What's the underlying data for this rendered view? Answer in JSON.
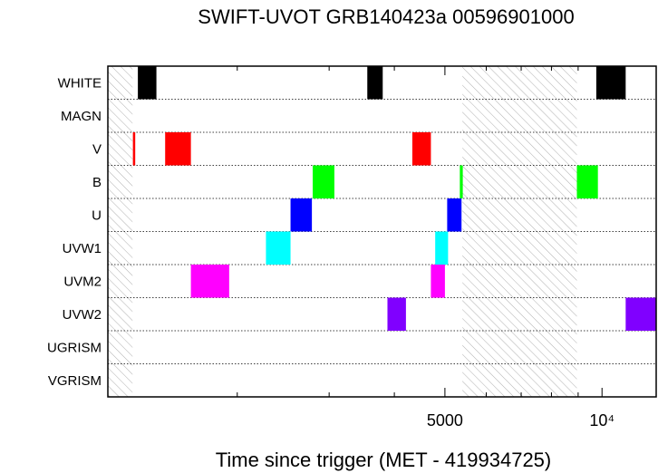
{
  "chart_data": {
    "type": "timeline",
    "title": "SWIFT-UVOT GRB140423a 00596901000",
    "xlabel": "Time since trigger (MET - 419934725)",
    "ylabel": "",
    "x_scale": "log",
    "xlim": [
      1130,
      12700
    ],
    "x_ticks": [
      {
        "value": 5000,
        "label": "5000"
      },
      {
        "value": 10000,
        "label": "10⁴"
      }
    ],
    "filters": [
      "WHITE",
      "MAGN",
      "V",
      "B",
      "U",
      "UVW1",
      "UVM2",
      "UVW2",
      "UGRISM",
      "VGRISM"
    ],
    "gaps": [
      [
        1130,
        1260
      ],
      [
        5400,
        8950
      ]
    ],
    "colors": {
      "WHITE": "#000000",
      "V": "#ff0000",
      "B": "#00ff00",
      "U": "#0000ff",
      "UVW1": "#00ffff",
      "UVM2": "#ff00ff",
      "UVW2": "#8000ff",
      "gap_hatch": "#b0b0b0"
    },
    "exposures": [
      {
        "filter": "WHITE",
        "start": 1290,
        "end": 1400
      },
      {
        "filter": "WHITE",
        "start": 3550,
        "end": 3800
      },
      {
        "filter": "WHITE",
        "start": 9750,
        "end": 11100
      },
      {
        "filter": "V",
        "start": 1262,
        "end": 1275
      },
      {
        "filter": "V",
        "start": 1455,
        "end": 1630
      },
      {
        "filter": "V",
        "start": 4330,
        "end": 4700
      },
      {
        "filter": "B",
        "start": 2790,
        "end": 3070
      },
      {
        "filter": "B",
        "start": 5340,
        "end": 5410
      },
      {
        "filter": "B",
        "start": 8950,
        "end": 9820
      },
      {
        "filter": "U",
        "start": 2530,
        "end": 2780
      },
      {
        "filter": "U",
        "start": 5050,
        "end": 5380
      },
      {
        "filter": "UVW1",
        "start": 2270,
        "end": 2530
      },
      {
        "filter": "UVW1",
        "start": 4790,
        "end": 5070
      },
      {
        "filter": "UVM2",
        "start": 1630,
        "end": 1930
      },
      {
        "filter": "UVM2",
        "start": 4700,
        "end": 5000
      },
      {
        "filter": "UVW2",
        "start": 3880,
        "end": 4210
      },
      {
        "filter": "UVW2",
        "start": 11100,
        "end": 12700
      }
    ]
  }
}
